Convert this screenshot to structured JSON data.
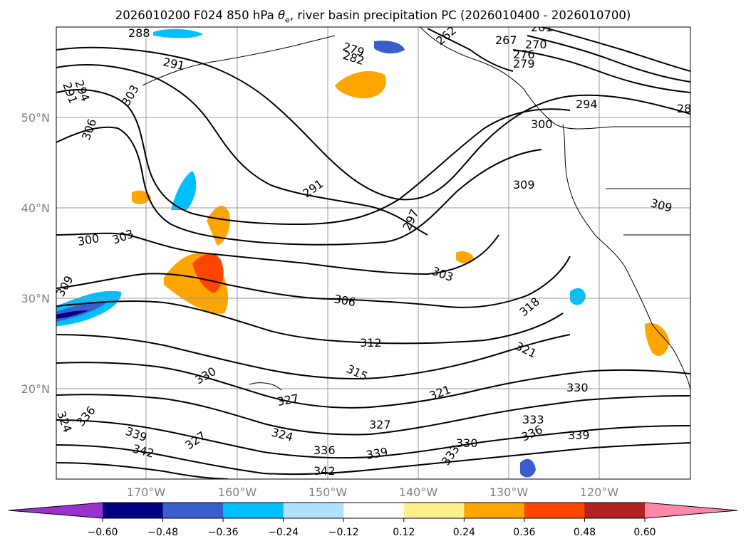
{
  "title": {
    "prefix": "2026010200 F024 850 hPa ",
    "theta_symbol": "θ",
    "theta_sub": "e",
    "suffix": ", river basin precipitation PC (2026010400 - 2026010700)"
  },
  "axes": {
    "lat_labels": [
      "50°N",
      "40°N",
      "30°N",
      "20°N"
    ],
    "lon_labels": [
      "170°W",
      "160°W",
      "150°W",
      "140°W",
      "130°W",
      "120°W"
    ]
  },
  "contour_labels": [
    "288",
    "291",
    "294",
    "291",
    "303",
    "306",
    "291",
    "297",
    "303",
    "309",
    "309",
    "300",
    "303",
    "309",
    "306",
    "312",
    "315",
    "318",
    "321",
    "321",
    "330",
    "327",
    "324",
    "327",
    "324",
    "336",
    "339",
    "342",
    "327",
    "336",
    "339",
    "342",
    "333",
    "330",
    "336",
    "339",
    "330",
    "333",
    "282",
    "279",
    "267",
    "270",
    "276",
    "279",
    "294",
    "300",
    "261",
    "262",
    "28"
  ],
  "colorbar": {
    "ticks": [
      "−0.60",
      "−0.48",
      "−0.36",
      "−0.24",
      "−0.12",
      "0.12",
      "0.24",
      "0.36",
      "0.48",
      "0.60"
    ],
    "colors": [
      "#9932cc",
      "#000080",
      "#3a5fcd",
      "#00bfff",
      "#b0e2ff",
      "#ffffff",
      "#fff08f",
      "#ffa500",
      "#ff4500",
      "#b22222",
      "#ff88aa",
      "#ff88aa"
    ]
  }
}
